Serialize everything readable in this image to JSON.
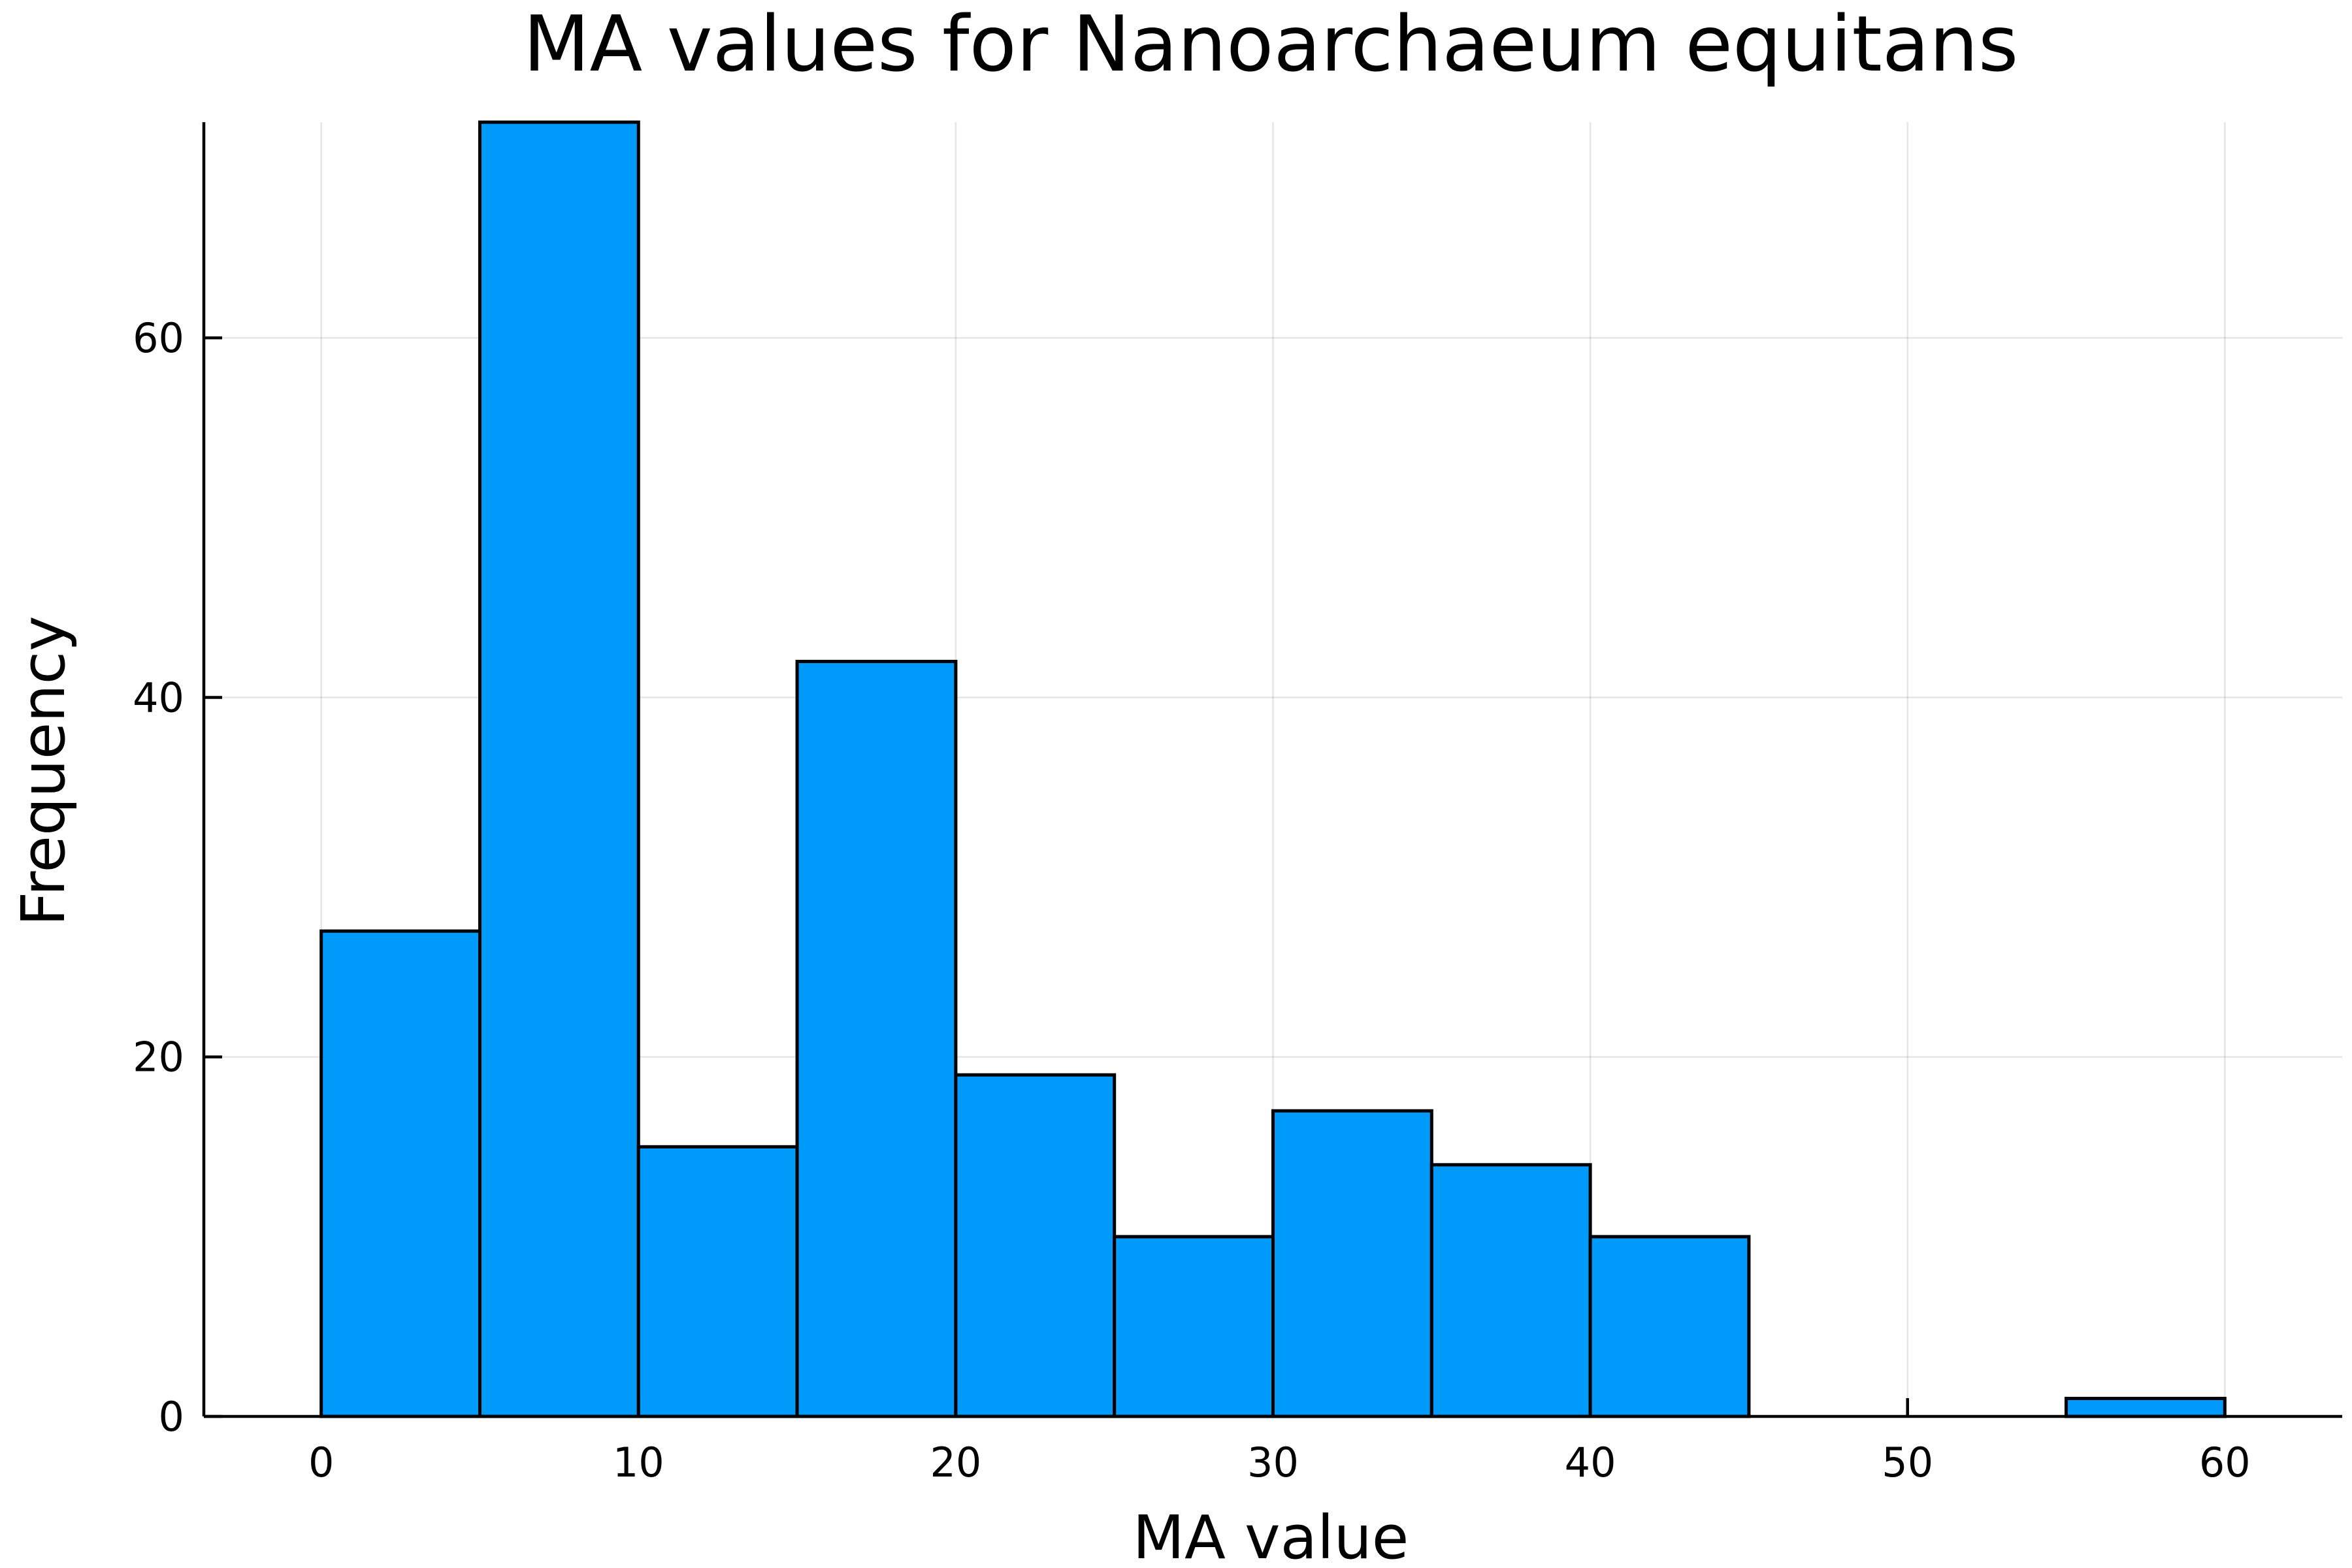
{
  "chart_data": {
    "type": "bar",
    "title": "MA values for Nanoarchaeum equitans",
    "xlabel": "MA value",
    "ylabel": "Frequency",
    "bar_color": "#009AFA",
    "edge_color": "#000000",
    "grid": true,
    "xlim": [
      -3.7,
      63.7
    ],
    "ylim": [
      0,
      72
    ],
    "xticks": [
      0,
      10,
      20,
      30,
      40,
      50,
      60
    ],
    "yticks": [
      0,
      20,
      40,
      60
    ],
    "bins": [
      {
        "x0": 0,
        "x1": 5,
        "count": 27
      },
      {
        "x0": 5,
        "x1": 10,
        "count": 72
      },
      {
        "x0": 10,
        "x1": 15,
        "count": 15
      },
      {
        "x0": 15,
        "x1": 20,
        "count": 42
      },
      {
        "x0": 20,
        "x1": 25,
        "count": 19
      },
      {
        "x0": 25,
        "x1": 30,
        "count": 10
      },
      {
        "x0": 30,
        "x1": 35,
        "count": 17
      },
      {
        "x0": 35,
        "x1": 40,
        "count": 14
      },
      {
        "x0": 40,
        "x1": 45,
        "count": 10
      },
      {
        "x0": 45,
        "x1": 50,
        "count": 0
      },
      {
        "x0": 50,
        "x1": 55,
        "count": 0
      },
      {
        "x0": 55,
        "x1": 60,
        "count": 1
      }
    ]
  }
}
